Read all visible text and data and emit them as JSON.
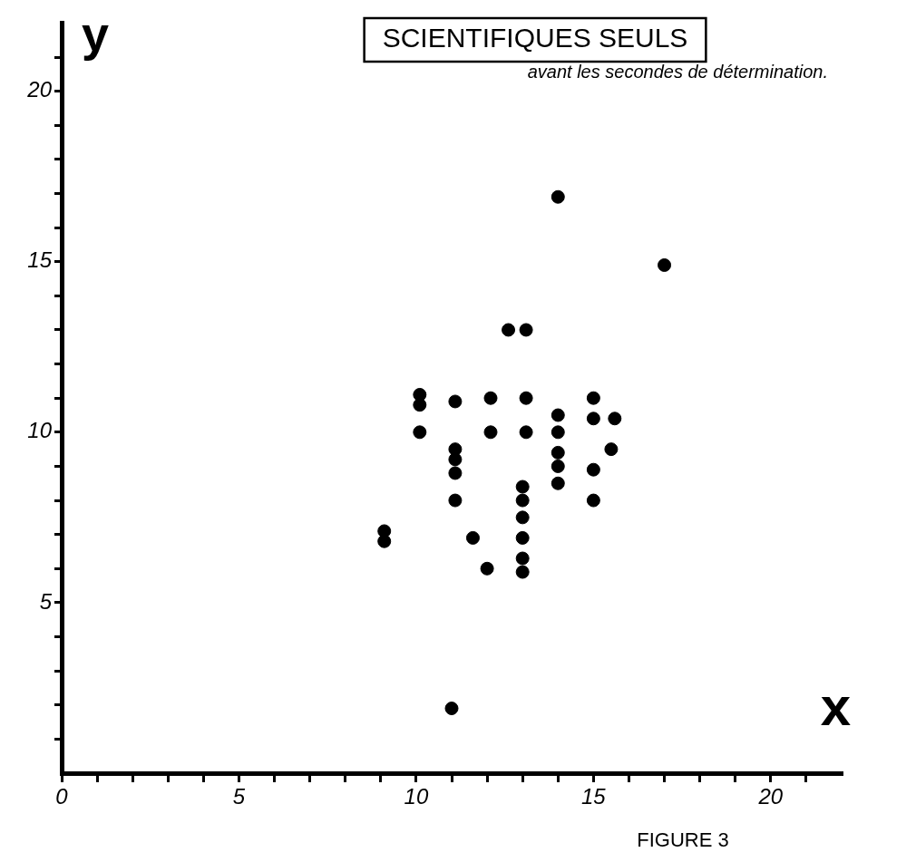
{
  "chart_data": {
    "type": "scatter",
    "title": "SCIENTIFIQUES SEULS",
    "subtitle": "avant les secondes de détermination.",
    "xlabel": "x",
    "ylabel": "y",
    "annotations": [
      "FIGURE 3"
    ],
    "x": [
      12.6,
      13.1,
      10.1,
      10.1,
      10.1,
      11.1,
      12.1,
      13.1,
      14.0,
      15.0,
      15.0,
      15.6,
      12.1,
      13.1,
      14.0,
      11.1,
      11.1,
      11.1,
      14.0,
      14.0,
      15.5,
      15.0,
      14.0,
      13.0,
      13.0,
      13.0,
      13.0,
      13.0,
      13.0,
      11.1,
      15.0,
      9.1,
      9.1,
      11.6,
      12.0,
      14.0,
      17.0,
      11.0
    ],
    "values": [
      13.0,
      13.0,
      11.1,
      10.8,
      10.0,
      10.9,
      11.0,
      11.0,
      10.5,
      11.0,
      10.4,
      10.4,
      10.0,
      10.0,
      10.0,
      9.5,
      9.2,
      8.8,
      9.4,
      9.0,
      9.5,
      8.9,
      8.5,
      8.4,
      8.0,
      7.5,
      6.9,
      6.3,
      5.9,
      8.0,
      8.0,
      7.1,
      6.8,
      6.9,
      6.0,
      16.9,
      14.9,
      1.9
    ],
    "color": "#000000",
    "marker": "circle",
    "xlim": [
      0,
      22
    ],
    "ylim": [
      0,
      22
    ],
    "xticks": [
      0,
      {
        "value": 1,
        "label": null
      },
      {
        "value": 2,
        "label": null
      },
      {
        "value": 3,
        "label": null
      },
      {
        "value": 4,
        "label": null
      },
      5,
      {
        "value": 6,
        "label": null
      },
      {
        "value": 7,
        "label": null
      },
      {
        "value": 8,
        "label": null
      },
      {
        "value": 9,
        "label": null
      },
      10,
      {
        "value": 11,
        "label": null
      },
      {
        "value": 12,
        "label": null
      },
      {
        "value": 13,
        "label": null
      },
      {
        "value": 14,
        "label": null
      },
      15,
      {
        "value": 16,
        "label": null
      },
      {
        "value": 17,
        "label": null
      },
      {
        "value": 18,
        "label": null
      },
      {
        "value": 19,
        "label": null
      },
      20,
      {
        "value": 21,
        "label": null
      }
    ],
    "yticks": [
      {
        "value": 1,
        "label": null
      },
      {
        "value": 2,
        "label": null
      },
      {
        "value": 3,
        "label": null
      },
      {
        "value": 4,
        "label": null
      },
      5,
      {
        "value": 6,
        "label": null
      },
      {
        "value": 7,
        "label": null
      },
      {
        "value": 8,
        "label": null
      },
      {
        "value": 9,
        "label": null
      },
      10,
      {
        "value": 11,
        "label": null
      },
      {
        "value": 12,
        "label": null
      },
      {
        "value": 13,
        "label": null
      },
      {
        "value": 14,
        "label": null
      },
      15,
      {
        "value": 16,
        "label": null
      },
      {
        "value": 17,
        "label": null
      },
      {
        "value": 18,
        "label": null
      },
      {
        "value": 19,
        "label": null
      },
      20,
      {
        "value": 21,
        "label": null
      }
    ]
  }
}
